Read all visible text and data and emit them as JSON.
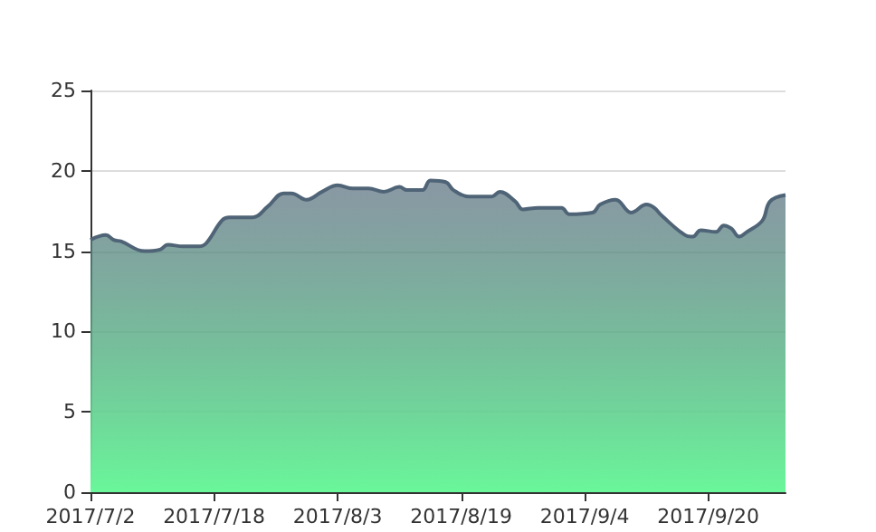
{
  "chart_data": {
    "type": "area",
    "x": [
      "2017-07-02",
      "2017-07-04",
      "2017-07-05",
      "2017-07-06",
      "2017-07-09",
      "2017-07-11",
      "2017-07-12",
      "2017-07-14",
      "2017-07-16",
      "2017-07-17",
      "2017-07-19",
      "2017-07-20",
      "2017-07-23",
      "2017-07-25",
      "2017-07-27",
      "2017-07-28",
      "2017-07-30",
      "2017-08-01",
      "2017-08-03",
      "2017-08-05",
      "2017-08-07",
      "2017-08-09",
      "2017-08-11",
      "2017-08-12",
      "2017-08-14",
      "2017-08-15",
      "2017-08-17",
      "2017-08-18",
      "2017-08-20",
      "2017-08-22",
      "2017-08-23",
      "2017-08-24",
      "2017-08-26",
      "2017-08-27",
      "2017-08-29",
      "2017-09-01",
      "2017-09-02",
      "2017-09-05",
      "2017-09-06",
      "2017-09-08",
      "2017-09-10",
      "2017-09-12",
      "2017-09-13",
      "2017-09-14",
      "2017-09-17",
      "2017-09-18",
      "2017-09-19",
      "2017-09-21",
      "2017-09-22",
      "2017-09-23",
      "2017-09-24",
      "2017-09-25",
      "2017-09-27",
      "2017-09-28",
      "2017-09-30"
    ],
    "series": [
      {
        "color": "#4f6476",
        "values": [
          15.7,
          16.0,
          15.7,
          15.6,
          15.0,
          15.1,
          15.4,
          15.3,
          15.3,
          15.5,
          16.9,
          17.1,
          17.1,
          17.8,
          18.6,
          18.6,
          18.2,
          18.7,
          19.1,
          18.9,
          18.9,
          18.7,
          19.0,
          18.8,
          18.8,
          19.4,
          19.3,
          18.8,
          18.4,
          18.4,
          18.4,
          18.7,
          18.1,
          17.6,
          17.7,
          17.7,
          17.3,
          17.4,
          17.9,
          18.2,
          17.4,
          17.9,
          17.7,
          17.2,
          16.0,
          15.9,
          16.3,
          16.2,
          16.6,
          16.4,
          15.9,
          16.2,
          16.9,
          18.1,
          18.5
        ]
      }
    ],
    "xlim": [
      "2017-07-02",
      "2017-09-30"
    ],
    "xticks": [
      {
        "value": "2017-07-02",
        "label": "2017/7/2"
      },
      {
        "value": "2017-07-18",
        "label": "2017/7/18"
      },
      {
        "value": "2017-08-03",
        "label": "2017/8/3"
      },
      {
        "value": "2017-08-19",
        "label": "2017/8/19"
      },
      {
        "value": "2017-09-04",
        "label": "2017/9/4"
      },
      {
        "value": "2017-09-20",
        "label": "2017/9/20"
      }
    ],
    "ylim": [
      0,
      25
    ],
    "yticks": [
      0,
      5,
      10,
      15,
      20,
      25
    ],
    "grid": "y"
  }
}
